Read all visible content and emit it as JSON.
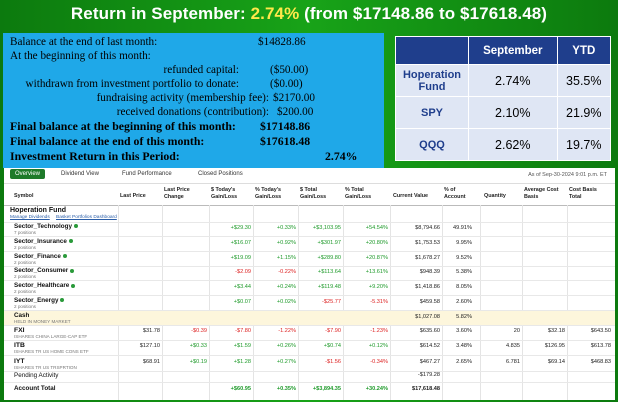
{
  "title": {
    "prefix": "Return in September: ",
    "highlight": "2.74%",
    "suffix": " (from $17148.86 to $17618.48)"
  },
  "summary": {
    "rows": [
      {
        "label": "Balance at the end of last month:",
        "value": "$14828.86",
        "bold": false
      },
      {
        "label": "At the beginning of this month:",
        "value": "",
        "bold": false
      },
      {
        "label": "refunded capital:",
        "value": "($50.00)",
        "bold": false
      },
      {
        "label": "withdrawn from investment portfolio to donate:",
        "value": "($0.00)",
        "bold": false
      },
      {
        "label": "fundraising activity (membership fee):",
        "value": "$2170.00",
        "bold": false
      },
      {
        "label": "received donations (contribution):",
        "value": "$200.00",
        "bold": false
      },
      {
        "label": "Final balance at the beginning of this month:",
        "value": "$17148.86",
        "bold": true
      },
      {
        "label": "Final balance at the end of this month:",
        "value": "$17618.48",
        "bold": true
      },
      {
        "label": "Investment Return in this Period:",
        "value": "2.74%",
        "bold": true
      }
    ]
  },
  "compare": {
    "headers": [
      "",
      "September",
      "YTD"
    ],
    "rows": [
      {
        "name": "Hoperation Fund",
        "sep": "2.74%",
        "ytd": "35.5%"
      },
      {
        "name": "SPY",
        "sep": "2.10%",
        "ytd": "21.9%"
      },
      {
        "name": "QQQ",
        "sep": "2.62%",
        "ytd": "19.7%"
      }
    ]
  },
  "portfolio": {
    "tabs": [
      "Overview",
      "Dividend View",
      "Fund Performance",
      "Closed Positions"
    ],
    "as_of": "As of Sep-30-2024 9:01 p.m. ET",
    "columns": {
      "symbol": "Symbol",
      "last_price": "Last Price",
      "last_change": "Last Price Change",
      "today_gl": "$ Today's Gain/Loss",
      "today_pct": "% Today's Gain/Loss",
      "total_gl": "$ Total Gain/Loss",
      "total_pct": "% Total Gain/Loss",
      "current_value": "Current Value",
      "pct_account": "% of Account",
      "quantity": "Quantity",
      "avg_cost": "Average Cost Basis",
      "cost_total": "Cost Basis Total"
    },
    "fund_name": "Hoperation Fund",
    "fund_links": [
      "Manage Dividends",
      "Basket Portfolios Dashboard"
    ],
    "sectors": [
      {
        "name": "Sector_Technology",
        "sub": "7 positions",
        "today_gl": "+$29.30",
        "today_pct": "+0.33%",
        "total_gl": "+$3,103.95",
        "total_pct": "+54.54%",
        "value": "$8,794.66",
        "pct": "49.91%"
      },
      {
        "name": "Sector_Insurance",
        "sub": "2 positions",
        "today_gl": "+$16.07",
        "today_pct": "+0.92%",
        "total_gl": "+$301.97",
        "total_pct": "+20.80%",
        "value": "$1,753.53",
        "pct": "9.95%"
      },
      {
        "name": "Sector_Finance",
        "sub": "2 positions",
        "today_gl": "+$19.09",
        "today_pct": "+1.15%",
        "total_gl": "+$289.80",
        "total_pct": "+20.87%",
        "value": "$1,678.27",
        "pct": "9.52%"
      },
      {
        "name": "Sector_Consumer",
        "sub": "2 positions",
        "today_gl": "-$2.09",
        "today_pct": "-0.22%",
        "total_gl": "+$113.64",
        "total_pct": "+13.61%",
        "value": "$948.39",
        "pct": "5.38%"
      },
      {
        "name": "Sector_Healthcare",
        "sub": "2 positions",
        "today_gl": "+$3.44",
        "today_pct": "+0.24%",
        "total_gl": "+$119.48",
        "total_pct": "+9.20%",
        "value": "$1,418.86",
        "pct": "8.05%"
      },
      {
        "name": "Sector_Energy",
        "sub": "2 positions",
        "today_gl": "+$0.07",
        "today_pct": "+0.02%",
        "total_gl": "-$25.77",
        "total_pct": "-5.31%",
        "value": "$459.58",
        "pct": "2.60%"
      }
    ],
    "cash": {
      "name": "Cash",
      "sub": "HELD IN MONEY MARKET",
      "value": "$1,027.08",
      "pct": "5.82%"
    },
    "holdings": [
      {
        "name": "FXI",
        "sub": "ISHARES CHINA LARGE-CAP ETF",
        "last": "$31.78",
        "chg": "-$0.39",
        "today_gl": "-$7.80",
        "today_pct": "-1.22%",
        "total_gl": "-$7.90",
        "total_pct": "-1.23%",
        "value": "$635.60",
        "pct": "3.60%",
        "qty": "20",
        "avg": "$32.18",
        "cost": "$643.50"
      },
      {
        "name": "ITB",
        "sub": "ISHARES TR US HOME CONS ETF",
        "last": "$127.10",
        "chg": "+$0.33",
        "today_gl": "+$1.59",
        "today_pct": "+0.26%",
        "total_gl": "+$0.74",
        "total_pct": "+0.12%",
        "value": "$614.52",
        "pct": "3.48%",
        "qty": "4.835",
        "avg": "$126.95",
        "cost": "$613.78"
      },
      {
        "name": "IYT",
        "sub": "ISHARES TR US TRSPRTION",
        "last": "$68.91",
        "chg": "+$0.19",
        "today_gl": "+$1.28",
        "today_pct": "+0.27%",
        "total_gl": "-$1.56",
        "total_pct": "-0.34%",
        "value": "$467.27",
        "pct": "2.65%",
        "qty": "6.781",
        "avg": "$69.14",
        "cost": "$468.83"
      }
    ],
    "pending": {
      "name": "Pending Activity",
      "value": "-$179.28"
    },
    "total": {
      "name": "Account Total",
      "today_gl": "+$60.95",
      "today_pct": "+0.35%",
      "total_gl": "+$3,894.35",
      "total_pct": "+30.24%",
      "value": "$17,618.48"
    }
  }
}
